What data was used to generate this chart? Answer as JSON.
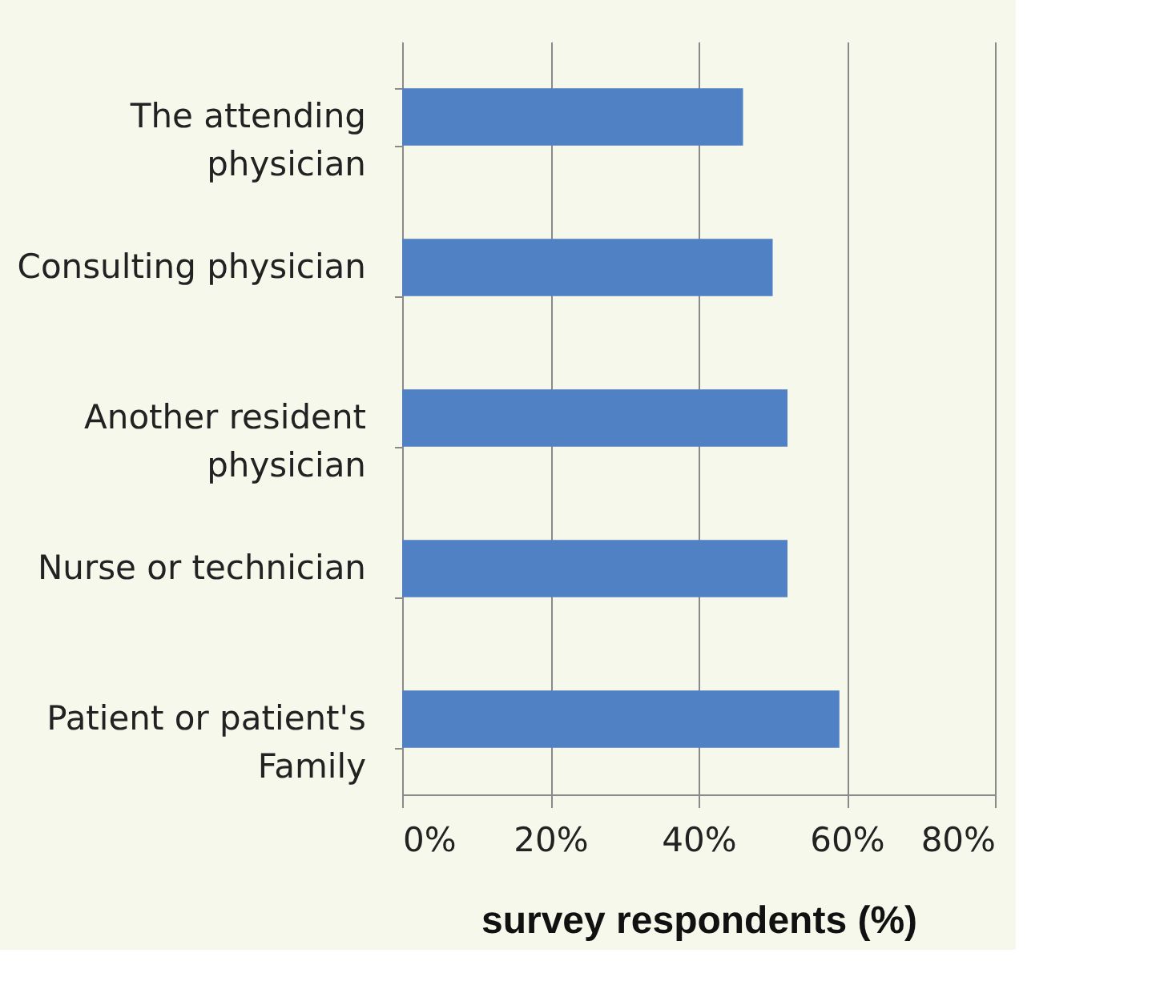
{
  "chart_data": {
    "type": "bar",
    "orientation": "horizontal",
    "categories": [
      "The attending physician",
      "Consulting physician",
      "Another resident physician",
      "Nurse or technician",
      "Patient or patient's Family"
    ],
    "values": [
      46,
      50,
      52,
      52,
      59
    ],
    "color": "#4f81c4",
    "xlabel": "survey respondents (%)",
    "xlim": [
      0,
      80
    ],
    "xticks": [
      {
        "value": 0,
        "label": "0%"
      },
      {
        "value": 20,
        "label": "20%"
      },
      {
        "value": 40,
        "label": "40%"
      },
      {
        "value": 60,
        "label": "60%"
      },
      {
        "value": 80,
        "label": "80%"
      }
    ],
    "grid": "x"
  }
}
